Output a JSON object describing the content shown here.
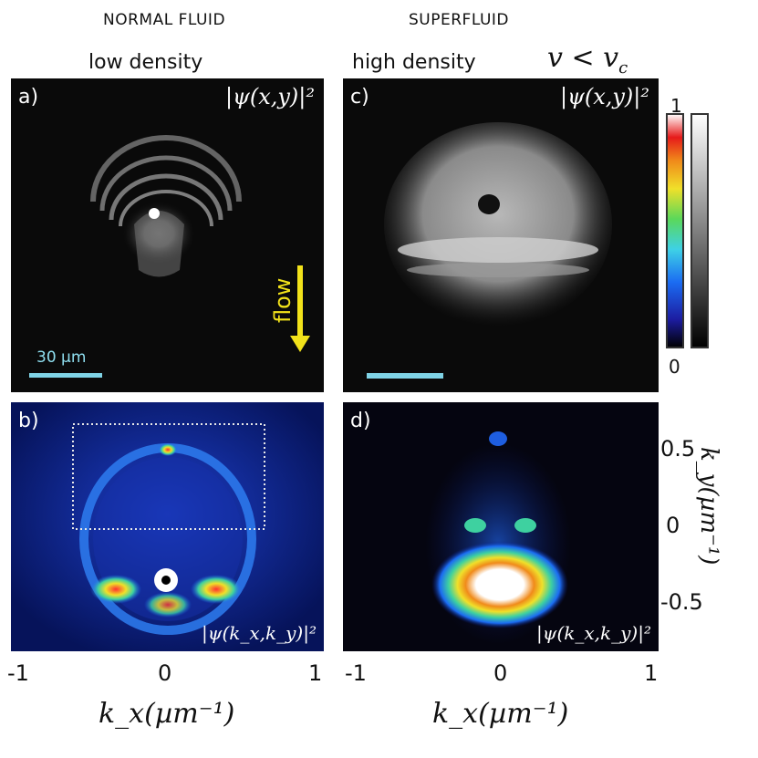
{
  "headers": {
    "normal_fluid": "NORMAL FLUID",
    "superfluid": "SUPERFLUID",
    "low_density": "low density",
    "high_density": "high density",
    "condition": "v < v_c"
  },
  "panels": {
    "a": {
      "label": "a)",
      "quantity": "|ψ(x,y)|²",
      "scale_bar": "30 µm",
      "flow_label": "flow"
    },
    "b": {
      "label": "b)",
      "quantity": "|ψ(k_x,k_y)|²"
    },
    "c": {
      "label": "c)",
      "quantity": "|ψ(x,y)|²"
    },
    "d": {
      "label": "d)",
      "quantity": "|ψ(k_x,k_y)|²"
    }
  },
  "colorbar": {
    "max_label": "1",
    "min_label": "0"
  },
  "axes": {
    "x_ticks": [
      "-1",
      "0",
      "1"
    ],
    "x_label": "k_x(µm⁻¹)",
    "y_ticks": [
      "0.5",
      "0",
      "-0.5"
    ],
    "y_label": "k_y(µm⁻¹)"
  },
  "colors": {
    "flow_arrow": "#f2e21a",
    "scale_bar": "#7fd3e6",
    "dotted_box": "#e8e8e8"
  }
}
